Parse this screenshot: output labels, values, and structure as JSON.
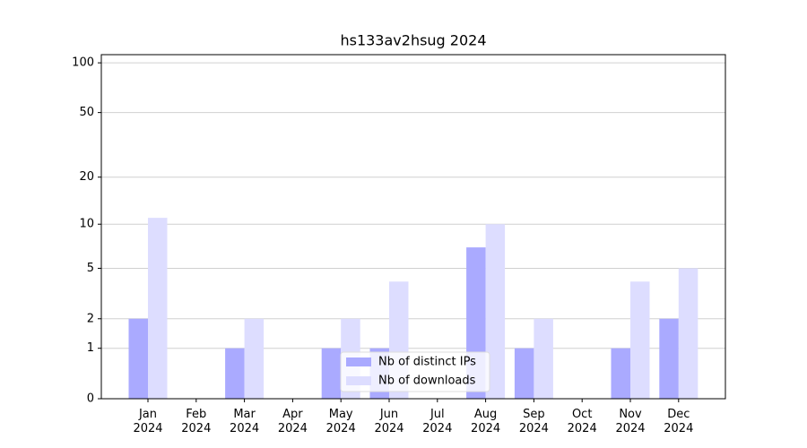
{
  "chart_data": {
    "type": "bar",
    "title": "hs133av2hsug 2024",
    "categories": [
      "Jan\n2024",
      "Feb\n2024",
      "Mar\n2024",
      "Apr\n2024",
      "May\n2024",
      "Jun\n2024",
      "Jul\n2024",
      "Aug\n2024",
      "Sep\n2024",
      "Oct\n2024",
      "Nov\n2024",
      "Dec\n2024"
    ],
    "series": [
      {
        "name": "Nb of distinct IPs",
        "color": "#aaaaff",
        "values": [
          2,
          0,
          1,
          0,
          1,
          1,
          0,
          7,
          1,
          0,
          1,
          2
        ]
      },
      {
        "name": "Nb of downloads",
        "color": "#ddddff",
        "values": [
          11,
          0,
          2,
          0,
          2,
          4,
          0,
          10,
          2,
          0,
          4,
          5
        ]
      }
    ],
    "yscale": "log1p",
    "ylim": [
      0,
      112
    ],
    "yticks": [
      0,
      1,
      2,
      5,
      10,
      20,
      50,
      100
    ],
    "grid": true,
    "legend": "lower center"
  }
}
